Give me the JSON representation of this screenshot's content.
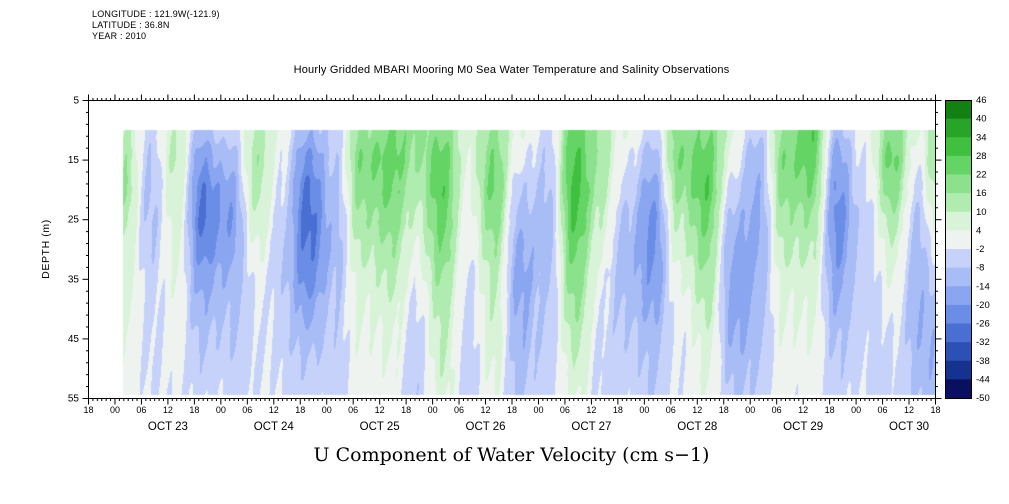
{
  "header": {
    "line1": "LONGITUDE : 121.9W(-121.9)",
    "line2": "LATITUDE : 36.8N",
    "line3": "YEAR : 2010"
  },
  "chart_data": {
    "type": "heatmap",
    "title": "Hourly Gridded MBARI Mooring M0 Sea Water Temperature and Salinity Observations",
    "ylabel": "DEPTH (m)",
    "caption": "U Component of Water Velocity (cm s−1)",
    "legend_position": "right-colorbar",
    "grid_lines": "off",
    "x_axis": {
      "hours_span": 192,
      "hour_tick_step": 6,
      "minor_tick_hours": 1,
      "hour_tick_labels": [
        "18",
        "00",
        "06",
        "12",
        "18",
        "00",
        "06",
        "12",
        "18",
        "00",
        "06",
        "12",
        "18",
        "00",
        "06",
        "12",
        "18",
        "00",
        "06",
        "12",
        "18",
        "00",
        "06",
        "12",
        "18",
        "00",
        "06",
        "12",
        "18",
        "00",
        "06",
        "12",
        "18"
      ],
      "date_labels": [
        "OCT 23",
        "OCT 24",
        "OCT 25",
        "OCT 26",
        "OCT 27",
        "OCT 28",
        "OCT 29",
        "OCT 30"
      ],
      "date_label_noon_hours": [
        18,
        42,
        66,
        90,
        114,
        138,
        162,
        186
      ]
    },
    "y_axis": {
      "min": 5,
      "max": 55,
      "tick_values": [
        5,
        15,
        25,
        35,
        45,
        55
      ],
      "tick_labels": [
        "5",
        "15",
        "25",
        "35",
        "45",
        "55"
      ]
    },
    "colorbar": {
      "levels": [
        -50,
        -44,
        -38,
        -32,
        -26,
        -20,
        -14,
        -8,
        -2,
        4,
        10,
        16,
        22,
        28,
        34,
        40,
        46
      ],
      "labels": [
        "46",
        "40",
        "34",
        "28",
        "22",
        "16",
        "10",
        "4",
        "-2",
        "-8",
        "-14",
        "-20",
        "-26",
        "-32",
        "-38",
        "-44",
        "-50"
      ],
      "colors_low_to_high": [
        "#0a1060",
        "#16328f",
        "#2c50b4",
        "#4a6fd2",
        "#6a8de6",
        "#8aa6f0",
        "#a8bcf6",
        "#c6d2fa",
        "#eef3f0",
        "#d8f3d8",
        "#b0ecb0",
        "#8ce28c",
        "#64d464",
        "#40bf40",
        "#28a428",
        "#128012"
      ]
    },
    "data_extent": {
      "time_start_hour": 8,
      "depth_top_m": 10,
      "depth_bottom_m": 54.5
    },
    "grid_data": {
      "time_hours_since_start": [
        8,
        14,
        20,
        26,
        32,
        38,
        44,
        50,
        56,
        62,
        68,
        74,
        80,
        86,
        92,
        98,
        104,
        110,
        116,
        122,
        128,
        134,
        140,
        146,
        152,
        158,
        164,
        170,
        176,
        182,
        188,
        192
      ],
      "depths_m": [
        10,
        15,
        20,
        25,
        30,
        35,
        40,
        45,
        50,
        55
      ],
      "values_by_time_column": [
        [
          10,
          14,
          16,
          12,
          8,
          6,
          4,
          2,
          2,
          1
        ],
        [
          -4,
          -6,
          -8,
          -8,
          -6,
          -4,
          -3,
          -2,
          -2,
          -1
        ],
        [
          8,
          10,
          8,
          6,
          4,
          2,
          1,
          0,
          -1,
          -2
        ],
        [
          -10,
          -18,
          -24,
          -26,
          -22,
          -16,
          -12,
          -8,
          -5,
          -3
        ],
        [
          -6,
          -12,
          -18,
          -20,
          -18,
          -14,
          -10,
          -8,
          -6,
          -4
        ],
        [
          12,
          14,
          12,
          8,
          4,
          0,
          -2,
          -3,
          -3,
          -2
        ],
        [
          2,
          0,
          -2,
          -4,
          -6,
          -6,
          -5,
          -4,
          -3,
          -2
        ],
        [
          -14,
          -22,
          -28,
          -30,
          -28,
          -24,
          -18,
          -12,
          -8,
          -5
        ],
        [
          -4,
          -6,
          -8,
          -10,
          -10,
          -8,
          -6,
          -5,
          -4,
          -3
        ],
        [
          16,
          20,
          18,
          14,
          10,
          6,
          4,
          2,
          1,
          0
        ],
        [
          22,
          26,
          24,
          20,
          16,
          12,
          8,
          6,
          4,
          2
        ],
        [
          18,
          16,
          12,
          8,
          4,
          0,
          -3,
          -5,
          -6,
          -6
        ],
        [
          20,
          24,
          26,
          24,
          20,
          16,
          12,
          10,
          8,
          5
        ],
        [
          8,
          6,
          4,
          2,
          0,
          -2,
          -3,
          -4,
          -4,
          -3
        ],
        [
          16,
          20,
          22,
          18,
          14,
          10,
          8,
          6,
          4,
          2
        ],
        [
          4,
          0,
          -6,
          -10,
          -14,
          -16,
          -14,
          -12,
          -10,
          -8
        ],
        [
          -6,
          -8,
          -10,
          -12,
          -12,
          -10,
          -8,
          -8,
          -6,
          -5
        ],
        [
          24,
          28,
          30,
          28,
          24,
          20,
          16,
          12,
          8,
          5
        ],
        [
          14,
          16,
          14,
          10,
          6,
          2,
          0,
          -2,
          -3,
          -3
        ],
        [
          2,
          -2,
          -6,
          -10,
          -12,
          -12,
          -10,
          -8,
          -6,
          -5
        ],
        [
          -4,
          -10,
          -16,
          -20,
          -20,
          -18,
          -14,
          -10,
          -8,
          -6
        ],
        [
          18,
          20,
          16,
          10,
          6,
          2,
          0,
          -2,
          -2,
          -2
        ],
        [
          22,
          26,
          28,
          24,
          20,
          16,
          12,
          8,
          6,
          4
        ],
        [
          6,
          2,
          -4,
          -10,
          -14,
          -16,
          -16,
          -14,
          -10,
          -8
        ],
        [
          -8,
          -12,
          -14,
          -16,
          -16,
          -14,
          -12,
          -10,
          -8,
          -6
        ],
        [
          18,
          22,
          20,
          16,
          12,
          8,
          6,
          4,
          2,
          1
        ],
        [
          26,
          24,
          20,
          14,
          10,
          6,
          4,
          2,
          0,
          -1
        ],
        [
          -10,
          -16,
          -20,
          -22,
          -20,
          -16,
          -12,
          -8,
          -6,
          -4
        ],
        [
          0,
          -2,
          -4,
          -6,
          -6,
          -6,
          -5,
          -4,
          -4,
          -3
        ],
        [
          20,
          24,
          20,
          14,
          8,
          4,
          0,
          -2,
          -4,
          -4
        ],
        [
          4,
          0,
          -4,
          -8,
          -10,
          -12,
          -12,
          -12,
          -10,
          -8
        ],
        [
          14,
          16,
          12,
          6,
          0,
          -6,
          -10,
          -12,
          -12,
          -10
        ]
      ]
    }
  }
}
